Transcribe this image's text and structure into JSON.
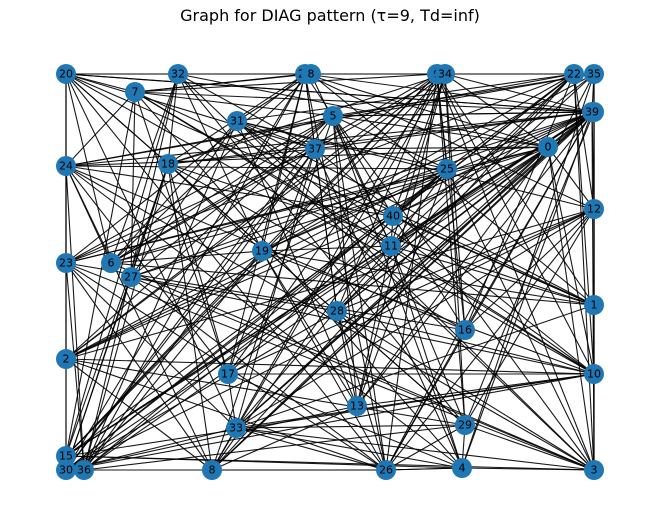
{
  "title": "Graph for DIAG pattern (τ=9, Td=inf)",
  "colors": {
    "node": "#1f77b4",
    "edge": "#000000",
    "background": "#ffffff"
  },
  "nodes": [
    "0",
    "1",
    "2",
    "3",
    "4",
    "5",
    "6",
    "7",
    "8",
    "10",
    "11",
    "12",
    "13",
    "14",
    "15",
    "16",
    "17",
    "18",
    "19",
    "20",
    "22",
    "23",
    "24",
    "25",
    "26",
    "27",
    "28",
    "29",
    "30",
    "31",
    "32",
    "33",
    "34",
    "35",
    "36",
    "37",
    "39",
    "40"
  ]
}
